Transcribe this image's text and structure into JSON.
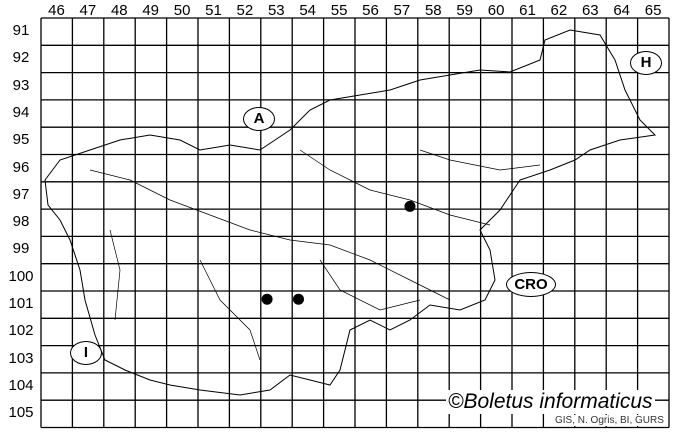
{
  "map": {
    "column_labels": [
      "46",
      "47",
      "48",
      "49",
      "50",
      "51",
      "52",
      "53",
      "54",
      "55",
      "56",
      "57",
      "58",
      "59",
      "60",
      "61",
      "62",
      "63",
      "64",
      "65"
    ],
    "row_labels": [
      "91",
      "92",
      "93",
      "94",
      "95",
      "96",
      "97",
      "98",
      "99",
      "100",
      "101",
      "102",
      "103",
      "104",
      "105"
    ],
    "country_labels": [
      {
        "text": "A",
        "name": "austria"
      },
      {
        "text": "H",
        "name": "hungary"
      },
      {
        "text": "CRO",
        "name": "croatia"
      },
      {
        "text": "I",
        "name": "italy"
      }
    ],
    "occurrences": [
      {
        "column": "57",
        "row": "97"
      },
      {
        "column": "53",
        "row": "101"
      },
      {
        "column": "54",
        "row": "101"
      }
    ],
    "copyright": "©Boletus informaticus",
    "credit": "GIS, N. Ogris, BI, GURS",
    "marker_color": "#000000"
  }
}
